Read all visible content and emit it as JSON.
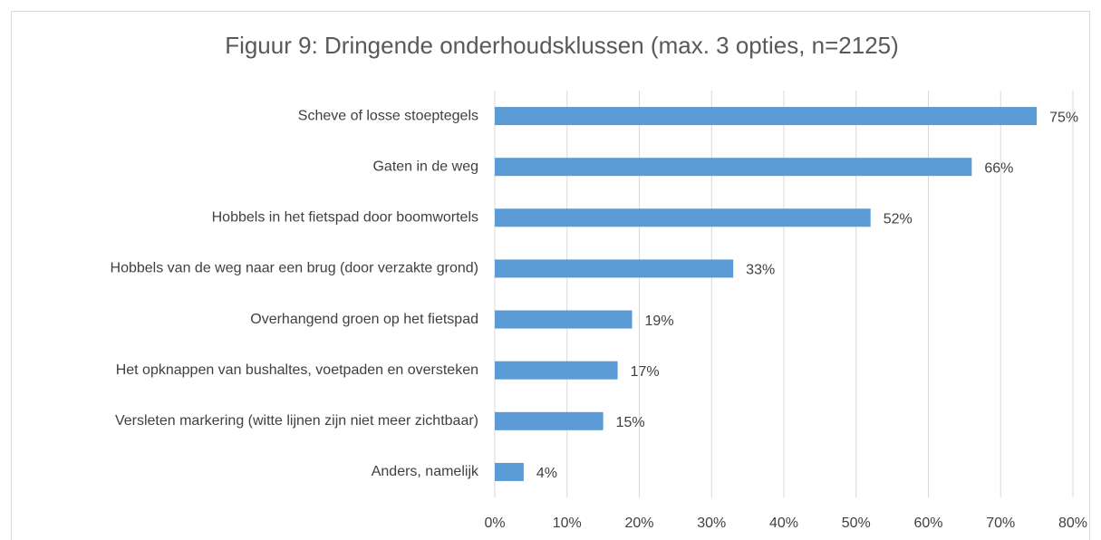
{
  "chart_data": {
    "type": "bar",
    "orientation": "horizontal",
    "title": "Figuur 9: Dringende onderhoudsklussen  (max. 3 opties, n=2125)",
    "categories": [
      "Scheve of losse stoeptegels",
      "Gaten in de weg",
      "Hobbels in het fietspad door boomwortels",
      "Hobbels van de weg naar een brug (door verzakte grond)",
      "Overhangend groen op het fietspad",
      "Het opknappen van bushaltes, voetpaden en oversteken",
      "Versleten markering (witte lijnen zijn niet meer zichtbaar)",
      "Anders, namelijk"
    ],
    "values": [
      75,
      66,
      52,
      33,
      19,
      17,
      15,
      4
    ],
    "value_labels": [
      "75%",
      "66%",
      "52%",
      "33%",
      "19%",
      "17%",
      "15%",
      "4%"
    ],
    "color": "#5b9bd5",
    "xlim": [
      0,
      80
    ],
    "xticks": [
      {
        "value": 0,
        "label": "0%"
      },
      {
        "value": 10,
        "label": "10%"
      },
      {
        "value": 20,
        "label": "20%"
      },
      {
        "value": 30,
        "label": "30%"
      },
      {
        "value": 40,
        "label": "40%"
      },
      {
        "value": 50,
        "label": "50%"
      },
      {
        "value": 60,
        "label": "60%"
      },
      {
        "value": 70,
        "label": "70%"
      },
      {
        "value": 80,
        "label": "80%"
      }
    ],
    "grid": true
  }
}
